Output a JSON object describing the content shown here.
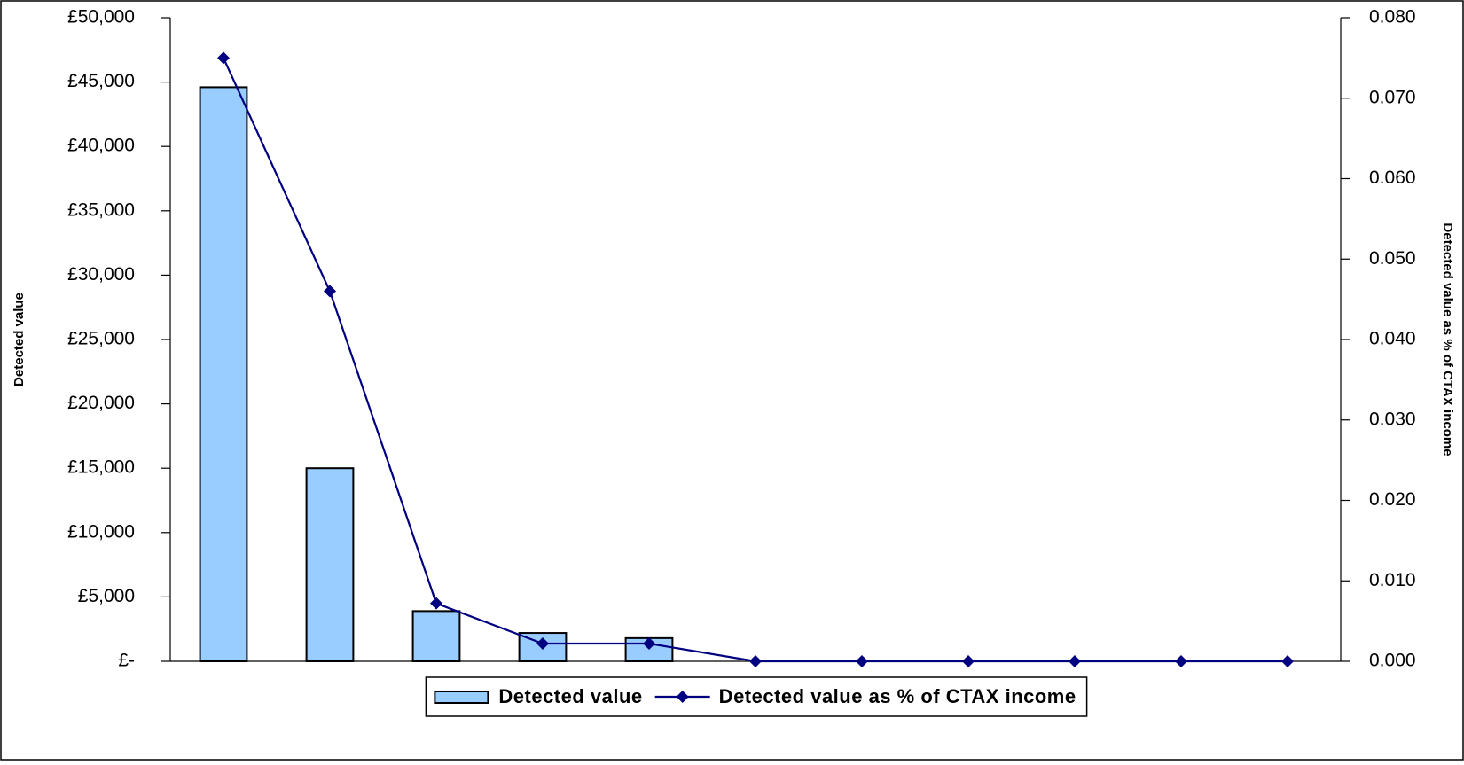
{
  "chart_data": {
    "type": "bar_line",
    "y_label": "Detected value",
    "y2_label": "Detected value as % of CTAX income",
    "categories": [
      null,
      null,
      null,
      null,
      null,
      null,
      null,
      null,
      null,
      null,
      null
    ],
    "series": [
      {
        "name": "Detected value",
        "type": "bar",
        "axis": "y",
        "color": "#99ccff",
        "values": [
          44600,
          15000,
          3900,
          2200,
          1800,
          0,
          0,
          0,
          0,
          0,
          0
        ]
      },
      {
        "name": "Detected value as % of CTAX income",
        "type": "line",
        "axis": "y2",
        "color": "#000080",
        "values": [
          0.075,
          0.046,
          0.0072,
          0.0022,
          0.0022,
          0,
          0,
          0,
          0,
          0,
          0
        ]
      }
    ],
    "ylim": [
      0,
      50000
    ],
    "yticks": [
      {
        "value": 0,
        "label": "£-"
      },
      {
        "value": 5000,
        "label": "£5,000"
      },
      {
        "value": 10000,
        "label": "£10,000"
      },
      {
        "value": 15000,
        "label": "£15,000"
      },
      {
        "value": 20000,
        "label": "£20,000"
      },
      {
        "value": 25000,
        "label": "£25,000"
      },
      {
        "value": 30000,
        "label": "£30,000"
      },
      {
        "value": 35000,
        "label": "£35,000"
      },
      {
        "value": 40000,
        "label": "£40,000"
      },
      {
        "value": 45000,
        "label": "£45,000"
      },
      {
        "value": 50000,
        "label": "£50,000"
      }
    ],
    "y2lim": [
      0,
      0.08
    ],
    "y2ticks": [
      {
        "value": 0,
        "label": "0.000"
      },
      {
        "value": 0.01,
        "label": "0.010"
      },
      {
        "value": 0.02,
        "label": "0.020"
      },
      {
        "value": 0.03,
        "label": "0.030"
      },
      {
        "value": 0.04,
        "label": "0.040"
      },
      {
        "value": 0.05,
        "label": "0.050"
      },
      {
        "value": 0.06,
        "label": "0.060"
      },
      {
        "value": 0.07,
        "label": "0.070"
      },
      {
        "value": 0.08,
        "label": "0.080"
      }
    ],
    "grid": false,
    "legend": "bottom"
  }
}
